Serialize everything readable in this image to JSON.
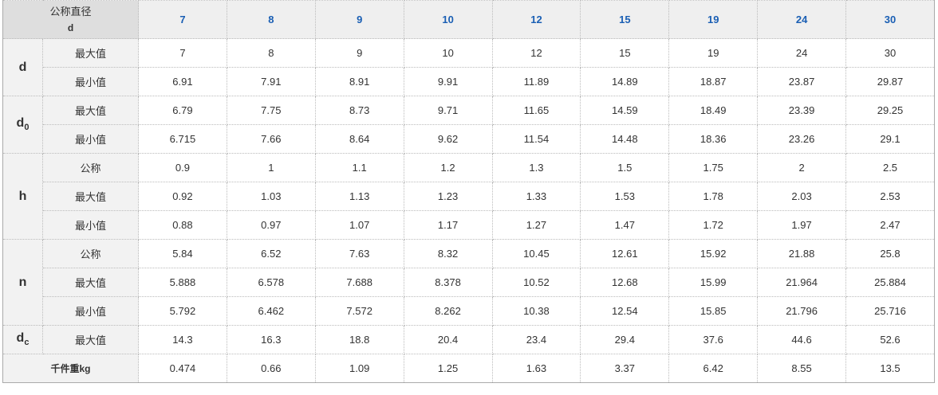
{
  "header": {
    "corner_label": "公称直径",
    "corner_symbol": "d",
    "sizes": [
      "7",
      "8",
      "9",
      "10",
      "12",
      "15",
      "19",
      "24",
      "30"
    ]
  },
  "groups": [
    {
      "symbol": "d",
      "sub": "",
      "rows": [
        {
          "label": "最大值",
          "values": [
            "7",
            "8",
            "9",
            "10",
            "12",
            "15",
            "19",
            "24",
            "30"
          ]
        },
        {
          "label": "最小值",
          "values": [
            "6.91",
            "7.91",
            "8.91",
            "9.91",
            "11.89",
            "14.89",
            "18.87",
            "23.87",
            "29.87"
          ]
        }
      ]
    },
    {
      "symbol": "d",
      "sub": "0",
      "rows": [
        {
          "label": "最大值",
          "values": [
            "6.79",
            "7.75",
            "8.73",
            "9.71",
            "11.65",
            "14.59",
            "18.49",
            "23.39",
            "29.25"
          ]
        },
        {
          "label": "最小值",
          "values": [
            "6.715",
            "7.66",
            "8.64",
            "9.62",
            "11.54",
            "14.48",
            "18.36",
            "23.26",
            "29.1"
          ]
        }
      ]
    },
    {
      "symbol": "h",
      "sub": "",
      "rows": [
        {
          "label": "公称",
          "values": [
            "0.9",
            "1",
            "1.1",
            "1.2",
            "1.3",
            "1.5",
            "1.75",
            "2",
            "2.5"
          ]
        },
        {
          "label": "最大值",
          "values": [
            "0.92",
            "1.03",
            "1.13",
            "1.23",
            "1.33",
            "1.53",
            "1.78",
            "2.03",
            "2.53"
          ]
        },
        {
          "label": "最小值",
          "values": [
            "0.88",
            "0.97",
            "1.07",
            "1.17",
            "1.27",
            "1.47",
            "1.72",
            "1.97",
            "2.47"
          ]
        }
      ]
    },
    {
      "symbol": "n",
      "sub": "",
      "rows": [
        {
          "label": "公称",
          "values": [
            "5.84",
            "6.52",
            "7.63",
            "8.32",
            "10.45",
            "12.61",
            "15.92",
            "21.88",
            "25.8"
          ]
        },
        {
          "label": "最大值",
          "values": [
            "5.888",
            "6.578",
            "7.688",
            "8.378",
            "10.52",
            "12.68",
            "15.99",
            "21.964",
            "25.884"
          ]
        },
        {
          "label": "最小值",
          "values": [
            "5.792",
            "6.462",
            "7.572",
            "8.262",
            "10.38",
            "12.54",
            "15.85",
            "21.796",
            "25.716"
          ]
        }
      ]
    },
    {
      "symbol": "d",
      "sub": "c",
      "rows": [
        {
          "label": "最大值",
          "values": [
            "14.3",
            "16.3",
            "18.8",
            "20.4",
            "23.4",
            "29.4",
            "37.6",
            "44.6",
            "52.6"
          ]
        }
      ]
    }
  ],
  "weight": {
    "label": "千件重kg",
    "values": [
      "0.474",
      "0.66",
      "1.09",
      "1.25",
      "1.63",
      "3.37",
      "6.42",
      "8.55",
      "13.5"
    ]
  },
  "colors": {
    "size_header": "#1a5fb4",
    "corner_bg": "#dedede",
    "label_bg": "#f2f2f2"
  }
}
